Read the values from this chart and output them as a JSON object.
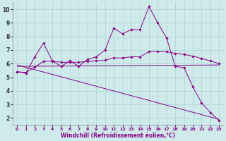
{
  "background_color": "#ceeaea",
  "line_color": "#880088",
  "grid_color": "#aad4d4",
  "xlabel": "Windchill (Refroidissement éolien,°C)",
  "ylabel": "",
  "xlim": [
    -0.5,
    23.5
  ],
  "ylim": [
    1.5,
    10.5
  ],
  "xticks": [
    0,
    1,
    2,
    3,
    4,
    5,
    6,
    7,
    8,
    9,
    10,
    11,
    12,
    13,
    14,
    15,
    16,
    17,
    18,
    19,
    20,
    21,
    22,
    23
  ],
  "yticks": [
    2,
    3,
    4,
    5,
    6,
    7,
    8,
    9,
    10
  ],
  "lines": [
    {
      "x": [
        0,
        1,
        2,
        3,
        4,
        5,
        6,
        7,
        8,
        9,
        10,
        11,
        12,
        13,
        14,
        15,
        16,
        17,
        18,
        19,
        20,
        21,
        22,
        23
      ],
      "y": [
        5.4,
        5.3,
        6.5,
        7.5,
        6.2,
        5.8,
        6.2,
        5.8,
        6.3,
        6.5,
        7.0,
        8.6,
        8.2,
        8.5,
        8.5,
        10.2,
        9.0,
        7.9,
        5.8,
        5.7,
        4.3,
        3.1,
        2.4,
        1.8
      ],
      "has_markers": true
    },
    {
      "x": [
        0,
        1,
        2,
        3,
        4,
        5,
        6,
        7,
        8,
        9,
        10,
        11,
        12,
        13,
        14,
        15,
        16,
        17,
        18,
        19,
        20,
        21,
        22,
        23
      ],
      "y": [
        5.4,
        5.35,
        5.73,
        6.18,
        6.18,
        6.1,
        6.1,
        6.1,
        6.16,
        6.2,
        6.25,
        6.42,
        6.42,
        6.5,
        6.5,
        6.88,
        6.88,
        6.88,
        6.75,
        6.68,
        6.55,
        6.38,
        6.2,
        6.0
      ],
      "has_markers": true
    },
    {
      "x": [
        0,
        23
      ],
      "y": [
        5.8,
        5.9
      ],
      "has_markers": false
    },
    {
      "x": [
        0,
        23
      ],
      "y": [
        5.9,
        1.9
      ],
      "has_markers": false
    }
  ]
}
